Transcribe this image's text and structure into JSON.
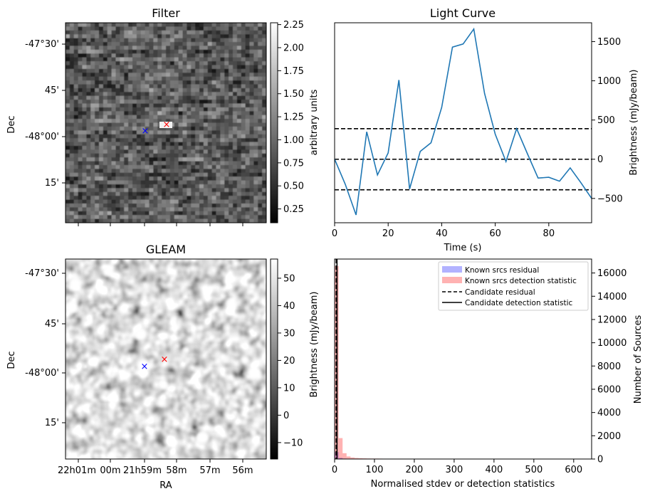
{
  "chart_data": [
    {
      "type": "heatmap",
      "title": "Filter",
      "ylabel": "Dec",
      "y_tick_labels": [
        "-47°30'",
        "45'",
        "-48°00'",
        "15'"
      ],
      "colorbar": {
        "label": "arbitrary units",
        "ticks": [
          "0.25",
          "0.50",
          "0.75",
          "1.00",
          "1.25",
          "1.50",
          "1.75",
          "2.00",
          "2.25"
        ],
        "range": [
          0.1,
          2.27
        ]
      },
      "markers": [
        {
          "label": "blue-x",
          "color": "#0000ff"
        },
        {
          "label": "red-x",
          "color": "#ff0000"
        }
      ]
    },
    {
      "type": "line",
      "title": "Light Curve",
      "xlabel": "Time (s)",
      "ylabel": "Brightness (mJy/beam)",
      "xlim": [
        0,
        96
      ],
      "ylim": [
        -810,
        1740
      ],
      "x_ticks": [
        0,
        20,
        40,
        60,
        80
      ],
      "y_ticks": [
        -500,
        0,
        500,
        1000,
        1500
      ],
      "line_color": "#1f77b4",
      "series": [
        {
          "x": [
            0,
            4,
            8,
            12,
            16,
            20,
            24,
            28,
            32,
            36,
            40,
            44,
            48,
            52,
            56,
            60,
            64,
            68,
            72,
            76,
            80,
            84,
            88,
            92,
            96
          ],
          "values": [
            0,
            -320,
            -710,
            350,
            -200,
            80,
            1010,
            -380,
            100,
            210,
            660,
            1430,
            1470,
            1660,
            840,
            320,
            -30,
            390,
            70,
            -240,
            -230,
            -280,
            -110,
            -300,
            -500
          ]
        }
      ],
      "hlines": [
        390,
        0,
        -390
      ]
    },
    {
      "type": "heatmap",
      "title": "GLEAM",
      "xlabel": "RA",
      "ylabel": "Dec",
      "y_tick_labels": [
        "-47°30'",
        "45'",
        "-48°00'",
        "15'"
      ],
      "x_tick_labels": [
        "22h01m",
        "00m",
        "21h59m",
        "58m",
        "57m",
        "56m"
      ],
      "colorbar": {
        "label": "Brightness (mJy/beam)",
        "ticks": [
          "−10",
          "0",
          "10",
          "20",
          "30",
          "40",
          "50"
        ],
        "range": [
          -16,
          57
        ]
      },
      "markers": [
        {
          "label": "blue-x",
          "color": "#0000ff"
        },
        {
          "label": "red-x",
          "color": "#ff0000"
        }
      ]
    },
    {
      "type": "bar",
      "xlabel": "Normalised stdev or detection statistics",
      "ylabel": "Number of Sources",
      "xlim": [
        0,
        645
      ],
      "ylim": [
        0,
        17200
      ],
      "x_ticks": [
        0,
        100,
        200,
        300,
        400,
        500,
        600
      ],
      "y_ticks": [
        0,
        2000,
        4000,
        6000,
        8000,
        10000,
        12000,
        14000,
        16000
      ],
      "legend_position": "top-right",
      "legend": [
        "Known srcs residual",
        "Known srcs detection statistic",
        "Candidate residual",
        "Candidate detection statistic"
      ],
      "bin_width": 10,
      "series": [
        {
          "name": "Known srcs residual",
          "color": "#0000ff",
          "bin_starts": [
            0,
            10,
            20,
            30,
            40,
            50,
            60,
            70,
            80,
            90,
            100,
            110,
            120,
            130,
            140,
            150,
            160,
            170,
            180,
            190,
            200,
            210,
            220,
            230,
            240,
            250,
            260,
            270,
            280,
            290,
            300,
            310,
            320,
            330,
            340,
            350,
            360,
            370,
            380,
            390,
            400,
            410,
            420,
            430,
            440,
            450,
            460,
            470,
            480,
            490,
            500,
            510,
            520,
            530,
            540,
            550,
            560,
            570,
            580,
            590,
            600,
            610,
            620,
            630
          ],
          "values": [
            600,
            100,
            40,
            20,
            10,
            8,
            6,
            5,
            4,
            3,
            3,
            2,
            2,
            2,
            2,
            1,
            1,
            2,
            1,
            1,
            1,
            1,
            1,
            1,
            1,
            1,
            1,
            1,
            1,
            1,
            1,
            1,
            1,
            1,
            1,
            1,
            1,
            1,
            1,
            1,
            1,
            1,
            1,
            1,
            1,
            1,
            1,
            1,
            1,
            1,
            1,
            1,
            1,
            1,
            1,
            1,
            1,
            1,
            1,
            1,
            1,
            1,
            1,
            1
          ]
        },
        {
          "name": "Known srcs detection statistic",
          "color": "#ff0000",
          "bin_starts": [
            0,
            10,
            20,
            30,
            40,
            50,
            60,
            70,
            80,
            90,
            100,
            110,
            120,
            130,
            140,
            150,
            160,
            170,
            180,
            190,
            200,
            210,
            220,
            230,
            240,
            250,
            260,
            270,
            280,
            290,
            300,
            310,
            320,
            330,
            340,
            350,
            360,
            370,
            380,
            390,
            400,
            410,
            420,
            430,
            440,
            450,
            460,
            470,
            480,
            490,
            500,
            510,
            520,
            530,
            540,
            550,
            560,
            570,
            580,
            590,
            600,
            610,
            620,
            630
          ],
          "values": [
            16600,
            1800,
            500,
            220,
            130,
            90,
            70,
            55,
            45,
            40,
            40,
            35,
            30,
            30,
            25,
            25,
            20,
            25,
            20,
            20,
            25,
            15,
            15,
            15,
            12,
            12,
            10,
            10,
            10,
            8,
            8,
            8,
            6,
            6,
            5,
            5,
            5,
            5,
            4,
            4,
            4,
            4,
            4,
            4,
            3,
            3,
            3,
            3,
            3,
            3,
            3,
            3,
            2,
            2,
            2,
            2,
            2,
            2,
            2,
            2,
            3,
            2,
            2,
            2
          ]
        }
      ],
      "vlines": [
        {
          "name": "Candidate residual",
          "x": 4,
          "style": "dashed"
        },
        {
          "name": "Candidate detection statistic",
          "x": 6,
          "style": "solid"
        }
      ]
    }
  ]
}
